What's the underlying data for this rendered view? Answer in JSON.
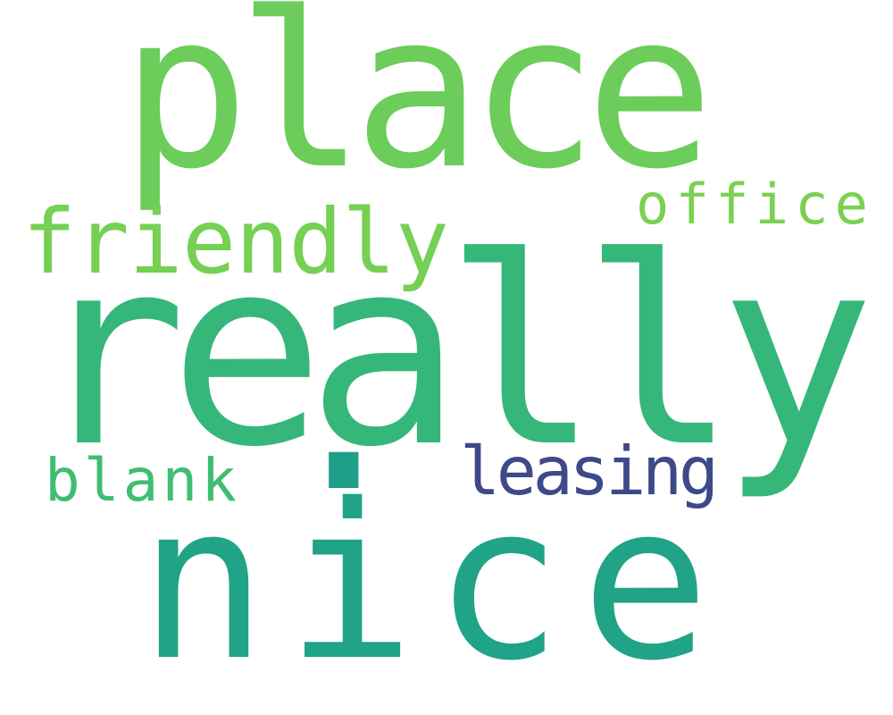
{
  "background": "#ffffff",
  "words": [
    {
      "text": "place",
      "color": "#6ccd5a"
    },
    {
      "text": "office",
      "color": "#7ad151"
    },
    {
      "text": "friendly",
      "color": "#75d054"
    },
    {
      "text": "really",
      "color": "#35b779"
    },
    {
      "text": "blank",
      "color": "#40bd72"
    },
    {
      "text": ".",
      "color": "#1f9e89"
    },
    {
      "text": "leasing",
      "color": "#3e4989"
    },
    {
      "text": "nice",
      "color": "#20a386"
    }
  ]
}
